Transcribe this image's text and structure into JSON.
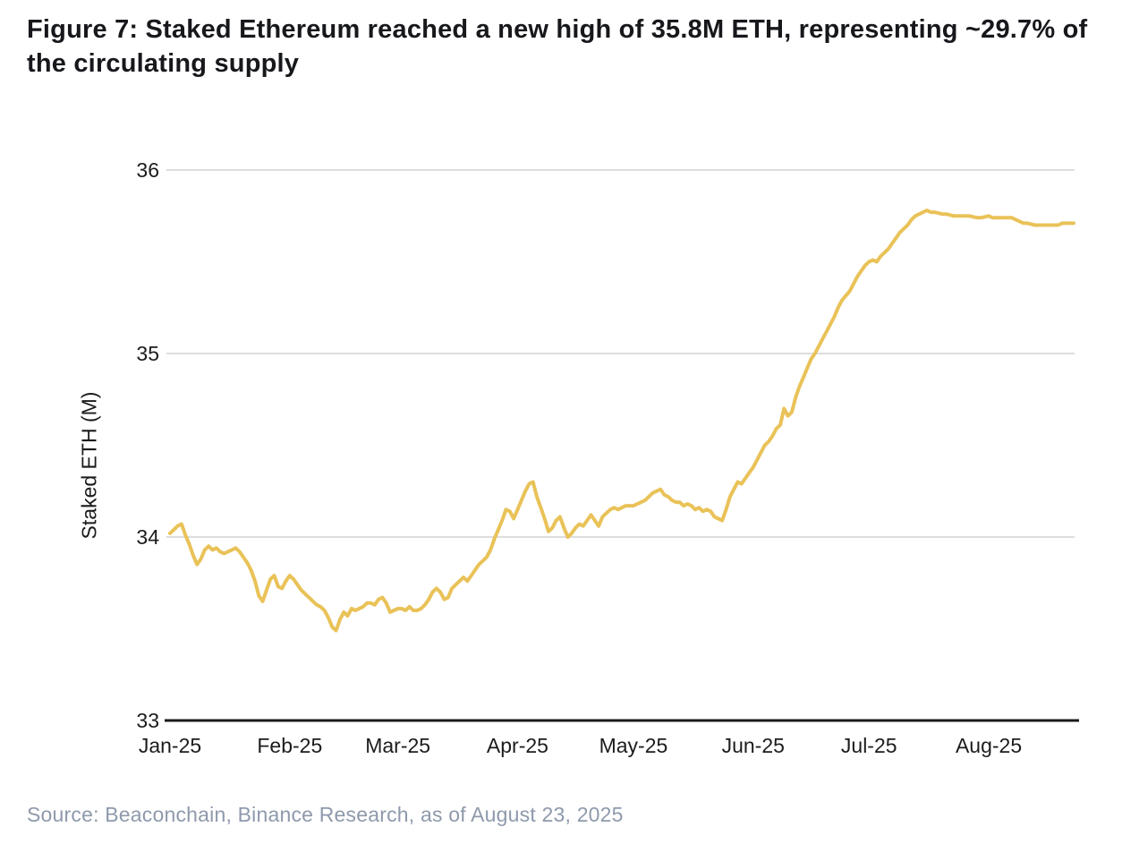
{
  "figure": {
    "title": "Figure 7: Staked Ethereum reached a new high of 35.8M ETH, representing ~29.7% of the circulating supply",
    "source": "Source: Beaconchain, Binance Research, as of August 23, 2025"
  },
  "colors": {
    "line": "#E9C258",
    "gridline": "#D4D4D4",
    "axis": "#1a1a1a",
    "title_text": "#17181c",
    "source_text": "#8e99ab"
  },
  "chart_data": {
    "type": "line",
    "title": "Staked Ethereum",
    "xlabel": "",
    "ylabel": "Staked ETH (M)",
    "ylim": [
      33,
      36
    ],
    "x_range": [
      "2025-01-01",
      "2025-08-23"
    ],
    "grid": "horizontal",
    "legend": "none",
    "y_ticks": [
      33,
      34,
      35,
      36
    ],
    "x_ticks": [
      {
        "date": "2025-01-01",
        "label": "Jan-25"
      },
      {
        "date": "2025-02-01",
        "label": "Feb-25"
      },
      {
        "date": "2025-03-01",
        "label": "Mar-25"
      },
      {
        "date": "2025-04-01",
        "label": "Apr-25"
      },
      {
        "date": "2025-05-01",
        "label": "May-25"
      },
      {
        "date": "2025-06-01",
        "label": "Jun-25"
      },
      {
        "date": "2025-07-01",
        "label": "Jul-25"
      },
      {
        "date": "2025-08-01",
        "label": "Aug-25"
      }
    ],
    "series": [
      {
        "name": "Staked ETH (M)",
        "color": "#E9C258",
        "points": [
          [
            "2025-01-01",
            34.02
          ],
          [
            "2025-01-02",
            34.04
          ],
          [
            "2025-01-03",
            34.06
          ],
          [
            "2025-01-04",
            34.07
          ],
          [
            "2025-01-05",
            34.01
          ],
          [
            "2025-01-06",
            33.96
          ],
          [
            "2025-01-07",
            33.9
          ],
          [
            "2025-01-08",
            33.85
          ],
          [
            "2025-01-09",
            33.88
          ],
          [
            "2025-01-10",
            33.93
          ],
          [
            "2025-01-11",
            33.95
          ],
          [
            "2025-01-12",
            33.93
          ],
          [
            "2025-01-13",
            33.94
          ],
          [
            "2025-01-14",
            33.92
          ],
          [
            "2025-01-15",
            33.91
          ],
          [
            "2025-01-16",
            33.92
          ],
          [
            "2025-01-17",
            33.93
          ],
          [
            "2025-01-18",
            33.94
          ],
          [
            "2025-01-19",
            33.92
          ],
          [
            "2025-01-20",
            33.89
          ],
          [
            "2025-01-21",
            33.86
          ],
          [
            "2025-01-22",
            33.82
          ],
          [
            "2025-01-23",
            33.76
          ],
          [
            "2025-01-24",
            33.68
          ],
          [
            "2025-01-25",
            33.65
          ],
          [
            "2025-01-26",
            33.71
          ],
          [
            "2025-01-27",
            33.77
          ],
          [
            "2025-01-28",
            33.79
          ],
          [
            "2025-01-29",
            33.73
          ],
          [
            "2025-01-30",
            33.72
          ],
          [
            "2025-01-31",
            33.76
          ],
          [
            "2025-02-01",
            33.79
          ],
          [
            "2025-02-02",
            33.77
          ],
          [
            "2025-02-03",
            33.74
          ],
          [
            "2025-02-04",
            33.71
          ],
          [
            "2025-02-05",
            33.69
          ],
          [
            "2025-02-06",
            33.67
          ],
          [
            "2025-02-07",
            33.65
          ],
          [
            "2025-02-08",
            33.63
          ],
          [
            "2025-02-09",
            33.62
          ],
          [
            "2025-02-10",
            33.6
          ],
          [
            "2025-02-11",
            33.56
          ],
          [
            "2025-02-12",
            33.51
          ],
          [
            "2025-02-13",
            33.49
          ],
          [
            "2025-02-14",
            33.55
          ],
          [
            "2025-02-15",
            33.59
          ],
          [
            "2025-02-16",
            33.57
          ],
          [
            "2025-02-17",
            33.61
          ],
          [
            "2025-02-18",
            33.6
          ],
          [
            "2025-02-19",
            33.61
          ],
          [
            "2025-02-20",
            33.62
          ],
          [
            "2025-02-21",
            33.64
          ],
          [
            "2025-02-22",
            33.64
          ],
          [
            "2025-02-23",
            33.63
          ],
          [
            "2025-02-24",
            33.66
          ],
          [
            "2025-02-25",
            33.67
          ],
          [
            "2025-02-26",
            33.64
          ],
          [
            "2025-02-27",
            33.59
          ],
          [
            "2025-02-28",
            33.6
          ],
          [
            "2025-03-01",
            33.61
          ],
          [
            "2025-03-02",
            33.61
          ],
          [
            "2025-03-03",
            33.6
          ],
          [
            "2025-03-04",
            33.62
          ],
          [
            "2025-03-05",
            33.6
          ],
          [
            "2025-03-06",
            33.6
          ],
          [
            "2025-03-07",
            33.61
          ],
          [
            "2025-03-08",
            33.63
          ],
          [
            "2025-03-09",
            33.66
          ],
          [
            "2025-03-10",
            33.7
          ],
          [
            "2025-03-11",
            33.72
          ],
          [
            "2025-03-12",
            33.7
          ],
          [
            "2025-03-13",
            33.66
          ],
          [
            "2025-03-14",
            33.67
          ],
          [
            "2025-03-15",
            33.72
          ],
          [
            "2025-03-16",
            33.74
          ],
          [
            "2025-03-17",
            33.76
          ],
          [
            "2025-03-18",
            33.78
          ],
          [
            "2025-03-19",
            33.76
          ],
          [
            "2025-03-20",
            33.79
          ],
          [
            "2025-03-21",
            33.82
          ],
          [
            "2025-03-22",
            33.85
          ],
          [
            "2025-03-23",
            33.87
          ],
          [
            "2025-03-24",
            33.89
          ],
          [
            "2025-03-25",
            33.93
          ],
          [
            "2025-03-26",
            33.99
          ],
          [
            "2025-03-27",
            34.04
          ],
          [
            "2025-03-28",
            34.09
          ],
          [
            "2025-03-29",
            34.15
          ],
          [
            "2025-03-30",
            34.14
          ],
          [
            "2025-03-31",
            34.1
          ],
          [
            "2025-04-01",
            34.15
          ],
          [
            "2025-04-02",
            34.2
          ],
          [
            "2025-04-03",
            34.25
          ],
          [
            "2025-04-04",
            34.29
          ],
          [
            "2025-04-05",
            34.3
          ],
          [
            "2025-04-06",
            34.22
          ],
          [
            "2025-04-07",
            34.16
          ],
          [
            "2025-04-08",
            34.1
          ],
          [
            "2025-04-09",
            34.03
          ],
          [
            "2025-04-10",
            34.05
          ],
          [
            "2025-04-11",
            34.09
          ],
          [
            "2025-04-12",
            34.11
          ],
          [
            "2025-04-13",
            34.05
          ],
          [
            "2025-04-14",
            34.0
          ],
          [
            "2025-04-15",
            34.02
          ],
          [
            "2025-04-16",
            34.05
          ],
          [
            "2025-04-17",
            34.07
          ],
          [
            "2025-04-18",
            34.06
          ],
          [
            "2025-04-19",
            34.09
          ],
          [
            "2025-04-20",
            34.12
          ],
          [
            "2025-04-21",
            34.09
          ],
          [
            "2025-04-22",
            34.06
          ],
          [
            "2025-04-23",
            34.11
          ],
          [
            "2025-04-24",
            34.13
          ],
          [
            "2025-04-25",
            34.15
          ],
          [
            "2025-04-26",
            34.16
          ],
          [
            "2025-04-27",
            34.15
          ],
          [
            "2025-04-28",
            34.16
          ],
          [
            "2025-04-29",
            34.17
          ],
          [
            "2025-04-30",
            34.17
          ],
          [
            "2025-05-01",
            34.17
          ],
          [
            "2025-05-02",
            34.18
          ],
          [
            "2025-05-03",
            34.19
          ],
          [
            "2025-05-04",
            34.2
          ],
          [
            "2025-05-05",
            34.22
          ],
          [
            "2025-05-06",
            34.24
          ],
          [
            "2025-05-07",
            34.25
          ],
          [
            "2025-05-08",
            34.26
          ],
          [
            "2025-05-09",
            34.23
          ],
          [
            "2025-05-10",
            34.22
          ],
          [
            "2025-05-11",
            34.2
          ],
          [
            "2025-05-12",
            34.19
          ],
          [
            "2025-05-13",
            34.19
          ],
          [
            "2025-05-14",
            34.17
          ],
          [
            "2025-05-15",
            34.18
          ],
          [
            "2025-05-16",
            34.17
          ],
          [
            "2025-05-17",
            34.15
          ],
          [
            "2025-05-18",
            34.16
          ],
          [
            "2025-05-19",
            34.14
          ],
          [
            "2025-05-20",
            34.15
          ],
          [
            "2025-05-21",
            34.14
          ],
          [
            "2025-05-22",
            34.11
          ],
          [
            "2025-05-23",
            34.1
          ],
          [
            "2025-05-24",
            34.09
          ],
          [
            "2025-05-25",
            34.15
          ],
          [
            "2025-05-26",
            34.22
          ],
          [
            "2025-05-27",
            34.26
          ],
          [
            "2025-05-28",
            34.3
          ],
          [
            "2025-05-29",
            34.29
          ],
          [
            "2025-05-30",
            34.32
          ],
          [
            "2025-05-31",
            34.35
          ],
          [
            "2025-06-01",
            34.38
          ],
          [
            "2025-06-02",
            34.42
          ],
          [
            "2025-06-03",
            34.46
          ],
          [
            "2025-06-04",
            34.5
          ],
          [
            "2025-06-05",
            34.52
          ],
          [
            "2025-06-06",
            34.55
          ],
          [
            "2025-06-07",
            34.59
          ],
          [
            "2025-06-08",
            34.61
          ],
          [
            "2025-06-09",
            34.7
          ],
          [
            "2025-06-10",
            34.66
          ],
          [
            "2025-06-11",
            34.68
          ],
          [
            "2025-06-12",
            34.76
          ],
          [
            "2025-06-13",
            34.82
          ],
          [
            "2025-06-14",
            34.87
          ],
          [
            "2025-06-15",
            34.92
          ],
          [
            "2025-06-16",
            34.97
          ],
          [
            "2025-06-17",
            35.0
          ],
          [
            "2025-06-18",
            35.04
          ],
          [
            "2025-06-19",
            35.08
          ],
          [
            "2025-06-20",
            35.12
          ],
          [
            "2025-06-21",
            35.16
          ],
          [
            "2025-06-22",
            35.2
          ],
          [
            "2025-06-23",
            35.25
          ],
          [
            "2025-06-24",
            35.29
          ],
          [
            "2025-06-26",
            35.34
          ],
          [
            "2025-06-27",
            35.38
          ],
          [
            "2025-06-28",
            35.42
          ],
          [
            "2025-06-29",
            35.45
          ],
          [
            "2025-06-30",
            35.48
          ],
          [
            "2025-07-01",
            35.5
          ],
          [
            "2025-07-02",
            35.51
          ],
          [
            "2025-07-03",
            35.5
          ],
          [
            "2025-07-04",
            35.53
          ],
          [
            "2025-07-05",
            35.55
          ],
          [
            "2025-07-06",
            35.57
          ],
          [
            "2025-07-07",
            35.6
          ],
          [
            "2025-07-08",
            35.63
          ],
          [
            "2025-07-09",
            35.66
          ],
          [
            "2025-07-10",
            35.68
          ],
          [
            "2025-07-11",
            35.7
          ],
          [
            "2025-07-12",
            35.73
          ],
          [
            "2025-07-13",
            35.75
          ],
          [
            "2025-07-14",
            35.76
          ],
          [
            "2025-07-15",
            35.77
          ],
          [
            "2025-07-16",
            35.78
          ],
          [
            "2025-07-17",
            35.77
          ],
          [
            "2025-07-18",
            35.77
          ],
          [
            "2025-07-20",
            35.76
          ],
          [
            "2025-07-21",
            35.76
          ],
          [
            "2025-07-23",
            35.75
          ],
          [
            "2025-07-24",
            35.75
          ],
          [
            "2025-07-26",
            35.75
          ],
          [
            "2025-07-27",
            35.75
          ],
          [
            "2025-07-29",
            35.74
          ],
          [
            "2025-07-30",
            35.74
          ],
          [
            "2025-08-01",
            35.75
          ],
          [
            "2025-08-02",
            35.74
          ],
          [
            "2025-08-04",
            35.74
          ],
          [
            "2025-08-05",
            35.74
          ],
          [
            "2025-08-07",
            35.74
          ],
          [
            "2025-08-08",
            35.73
          ],
          [
            "2025-08-09",
            35.72
          ],
          [
            "2025-08-10",
            35.71
          ],
          [
            "2025-08-11",
            35.71
          ],
          [
            "2025-08-13",
            35.7
          ],
          [
            "2025-08-14",
            35.7
          ],
          [
            "2025-08-16",
            35.7
          ],
          [
            "2025-08-17",
            35.7
          ],
          [
            "2025-08-19",
            35.7
          ],
          [
            "2025-08-20",
            35.71
          ],
          [
            "2025-08-23",
            35.71
          ]
        ]
      }
    ]
  }
}
